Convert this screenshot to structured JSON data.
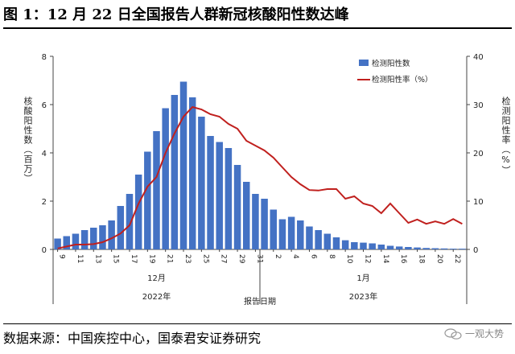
{
  "title": "图 1：12 月 22 日全国报告人群新冠核酸阳性数达峰",
  "source": "数据来源：中国疾控中心，国泰君安证券研究",
  "watermark": "一观大势",
  "chart_data": {
    "type": "bar+line",
    "left_axis": {
      "label": "核酸阳性数（百万）",
      "ylim": [
        0,
        8
      ],
      "ticks": [
        0,
        2,
        4,
        6,
        8
      ]
    },
    "right_axis": {
      "label": "检测阳性率（%）",
      "ylim": [
        0,
        40
      ],
      "ticks": [
        0,
        10,
        20,
        30,
        40
      ]
    },
    "x_tick_labels": [
      "9",
      "11",
      "13",
      "15",
      "17",
      "19",
      "21",
      "23",
      "25",
      "27",
      "29",
      "31",
      "2",
      "4",
      "6",
      "8",
      "10",
      "12",
      "14",
      "16",
      "18",
      "20",
      "22"
    ],
    "month_labels": [
      "12月",
      "1月"
    ],
    "year_labels": [
      "2022年",
      "2023年"
    ],
    "xlabel": "报告日期",
    "legend": {
      "placement": "top-right",
      "entries": [
        "检测阳性数",
        "检测阳性率（%）"
      ]
    },
    "colors": {
      "bar": "#4472c4",
      "line": "#c0201e"
    },
    "series": [
      {
        "name": "检测阳性数",
        "type": "bar",
        "axis": "left",
        "values": [
          0.45,
          0.55,
          0.65,
          0.8,
          0.9,
          1.0,
          1.2,
          1.8,
          2.3,
          3.1,
          4.05,
          4.9,
          5.85,
          6.4,
          6.95,
          6.3,
          5.5,
          4.7,
          4.45,
          4.2,
          3.5,
          2.8,
          2.3,
          2.1,
          1.65,
          1.25,
          1.35,
          1.2,
          0.95,
          0.8,
          0.65,
          0.5,
          0.38,
          0.3,
          0.28,
          0.25,
          0.2,
          0.15,
          0.12,
          0.1,
          0.08,
          0.06,
          0.05,
          0.04,
          0.03,
          0.03
        ]
      },
      {
        "name": "检测阳性率（%）",
        "type": "line",
        "axis": "right",
        "values": [
          0.2,
          0.6,
          1.0,
          1.0,
          1.1,
          1.5,
          2.3,
          3.3,
          5.0,
          9.5,
          13.0,
          15.0,
          20.0,
          24.0,
          27.5,
          29.5,
          29.0,
          28.0,
          27.5,
          26.0,
          25.0,
          22.5,
          21.5,
          20.5,
          19.0,
          17.0,
          15.0,
          13.5,
          12.3,
          12.2,
          12.5,
          12.5,
          10.5,
          11.0,
          9.5,
          9.0,
          7.5,
          9.5,
          7.5,
          5.5,
          6.2,
          5.3,
          5.8,
          5.3,
          6.3,
          5.3
        ]
      }
    ]
  }
}
